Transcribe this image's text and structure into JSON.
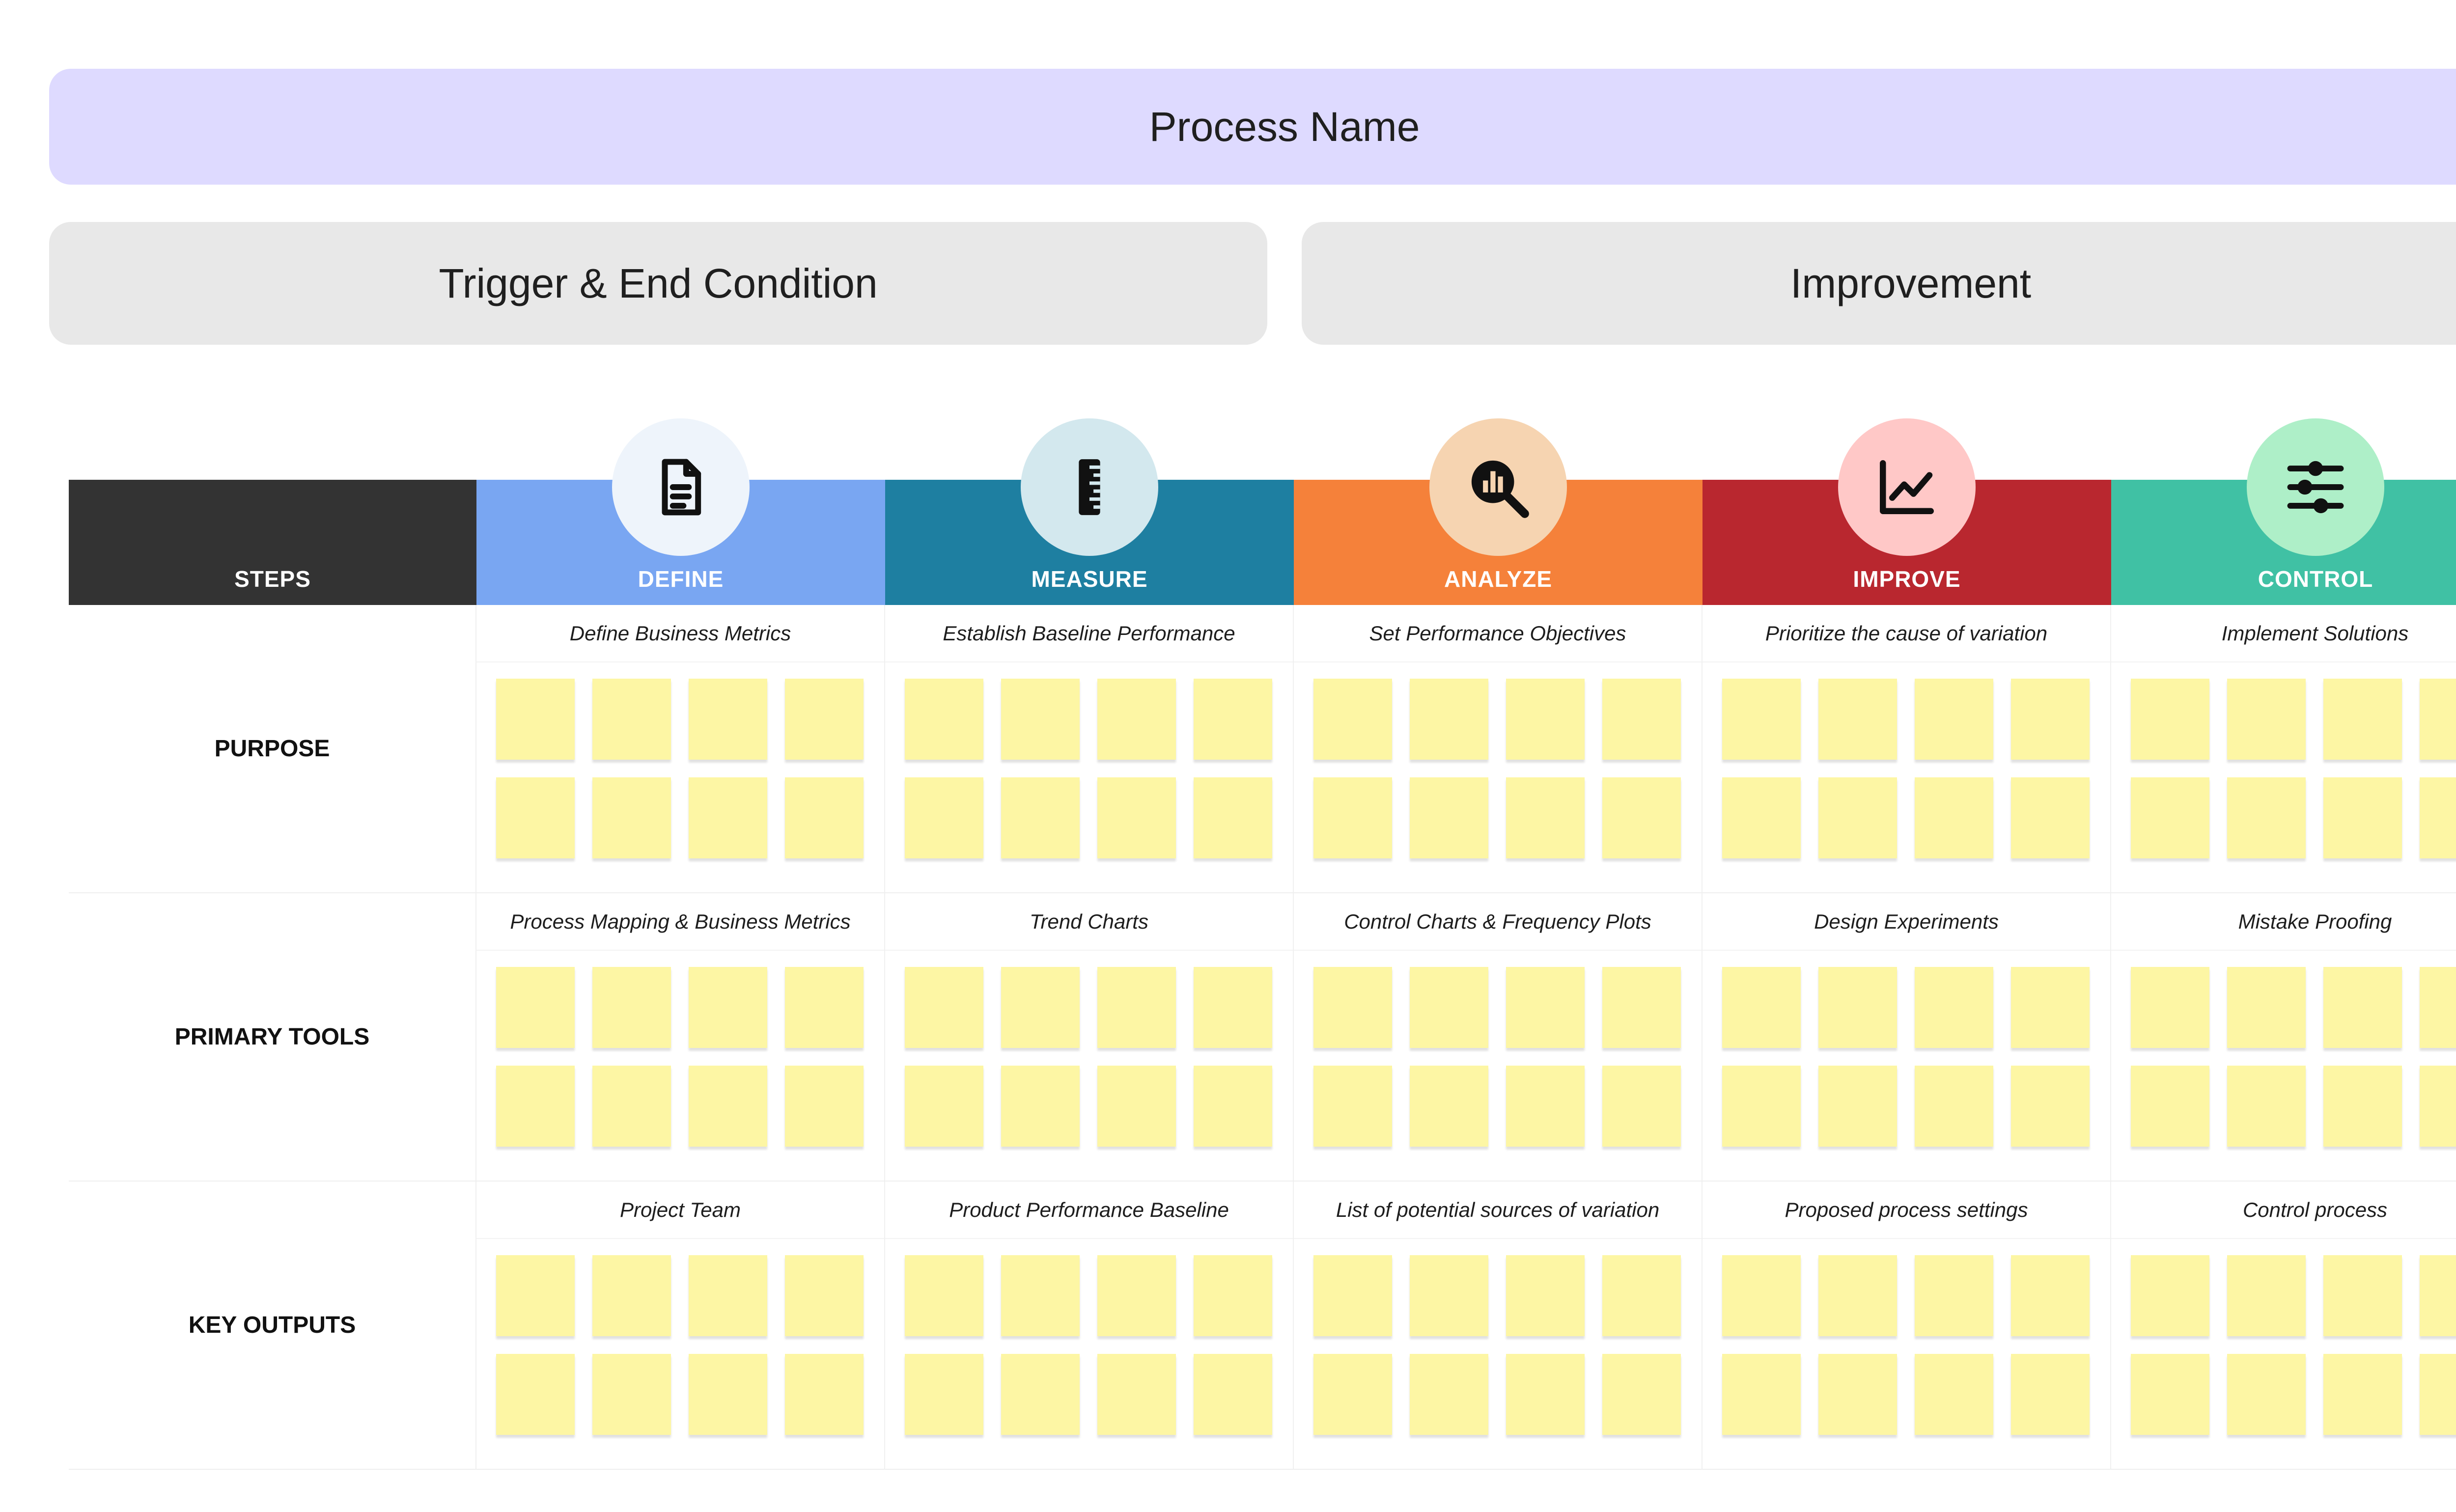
{
  "header": {
    "process_name": "Process Name",
    "trigger": "Trigger & End Condition",
    "improvement": "Improvement"
  },
  "table": {
    "steps_label": "STEPS",
    "phases": [
      {
        "label": "DEFINE",
        "color": "#79a6f2",
        "icon": "document-icon",
        "icon_bg": "#eef4fb"
      },
      {
        "label": "MEASURE",
        "color": "#1e7fa1",
        "icon": "ruler-icon",
        "icon_bg": "#d3e8ee"
      },
      {
        "label": "ANALYZE",
        "color": "#f5813a",
        "icon": "magnifier-chart-icon",
        "icon_bg": "#f6d4b1"
      },
      {
        "label": "IMPROVE",
        "color": "#b9272f",
        "icon": "line-chart-icon",
        "icon_bg": "#ffc8c7"
      },
      {
        "label": "CONTROL",
        "color": "#40c1a4",
        "icon": "sliders-icon",
        "icon_bg": "#aeefc8"
      }
    ],
    "rows": [
      {
        "label": "PURPOSE",
        "cells": [
          "Define Business Metrics",
          "Establish Baseline Performance",
          "Set Performance Objectives",
          "Prioritize the cause of variation",
          "Implement Solutions"
        ]
      },
      {
        "label": "PRIMARY TOOLS",
        "cells": [
          "Process Mapping & Business Metrics",
          "Trend Charts",
          "Control Charts & Frequency Plots",
          "Design Experiments",
          "Mistake Proofing"
        ]
      },
      {
        "label": "KEY OUTPUTS",
        "cells": [
          "Project Team",
          "Product Performance Baseline",
          "List of potential sources of variation",
          "Proposed process settings",
          "Control process"
        ]
      }
    ],
    "note_color": "#fdf6a4"
  }
}
